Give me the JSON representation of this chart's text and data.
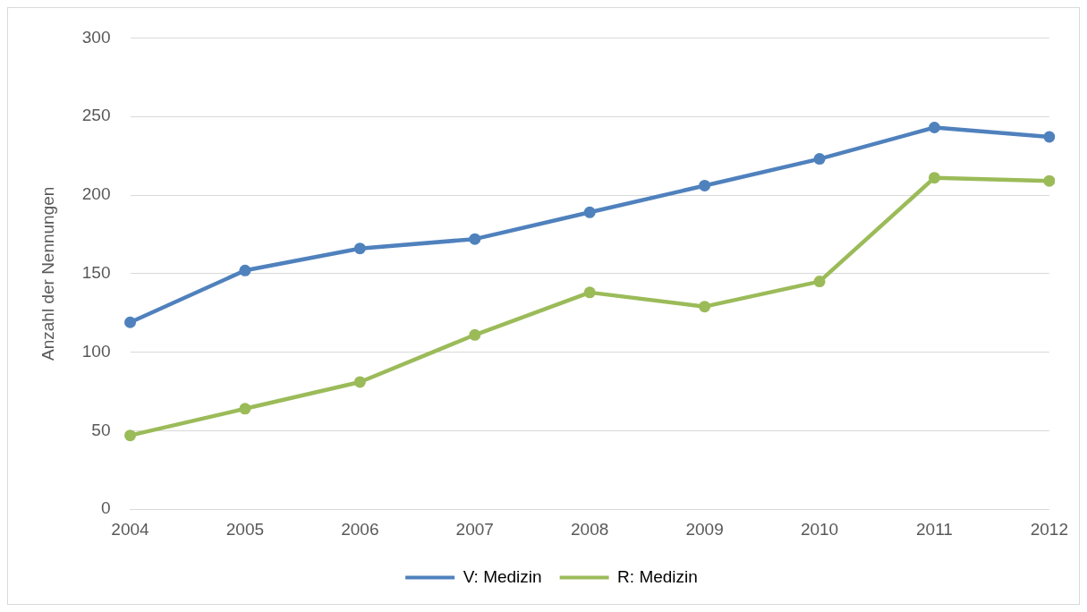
{
  "chart_data": {
    "type": "line",
    "ylabel": "Anzahl der Nennungen",
    "categories": [
      "2004",
      "2005",
      "2006",
      "2007",
      "2008",
      "2009",
      "2010",
      "2011",
      "2012"
    ],
    "series": [
      {
        "name": "V: Medizin",
        "color": "#4f81bd",
        "values": [
          119,
          152,
          166,
          172,
          189,
          206,
          223,
          243,
          237
        ]
      },
      {
        "name": "R: Medizin",
        "color": "#9bbb59",
        "values": [
          47,
          64,
          81,
          111,
          138,
          129,
          145,
          211,
          209
        ]
      }
    ],
    "ylim": [
      0,
      300
    ],
    "yticks": [
      0,
      50,
      100,
      150,
      200,
      250,
      300
    ],
    "grid": "y",
    "legend": "bottom",
    "marker": "circle",
    "line_style": "solid"
  }
}
